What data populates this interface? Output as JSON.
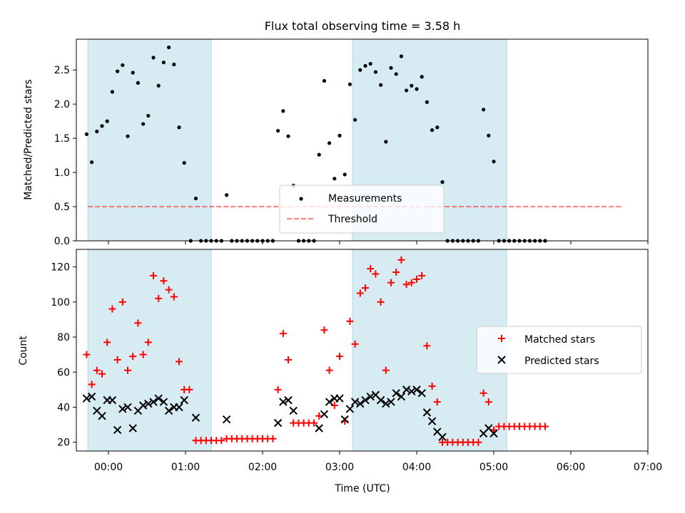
{
  "chart_data": [
    {
      "type": "scatter",
      "title": "Flux total observing time = 3.58 h",
      "ylabel": "Matched/Predicted stars",
      "xlabel": "",
      "xlim": [
        "23:35",
        "07:00"
      ],
      "ylim": [
        0,
        2.95
      ],
      "yticks": [
        "0.0",
        "0.5",
        "1.0",
        "1.5",
        "2.0",
        "2.5"
      ],
      "shaded_intervals": [
        [
          "23:44",
          "01:20"
        ],
        [
          "03:10",
          "05:10"
        ]
      ],
      "legend": {
        "position": "lower-center",
        "entries": [
          "Measurements",
          "Threshold"
        ]
      },
      "threshold": {
        "name": "Threshold",
        "value": 0.5,
        "x_range": [
          "23:44",
          "06:40"
        ]
      },
      "series": [
        {
          "name": "Measurements",
          "points": [
            [
              "23:43",
              1.56
            ],
            [
              "23:47",
              1.15
            ],
            [
              "23:51",
              1.6
            ],
            [
              "23:55",
              1.68
            ],
            [
              "23:59",
              1.75
            ],
            [
              "00:03",
              2.18
            ],
            [
              "00:07",
              2.48
            ],
            [
              "00:11",
              2.57
            ],
            [
              "00:15",
              1.53
            ],
            [
              "00:19",
              2.46
            ],
            [
              "00:23",
              2.31
            ],
            [
              "00:27",
              1.71
            ],
            [
              "00:31",
              1.83
            ],
            [
              "00:35",
              2.68
            ],
            [
              "00:39",
              2.27
            ],
            [
              "00:43",
              2.61
            ],
            [
              "00:47",
              2.83
            ],
            [
              "00:51",
              2.58
            ],
            [
              "00:55",
              1.66
            ],
            [
              "00:59",
              1.14
            ],
            [
              "01:04",
              0.0
            ],
            [
              "01:08",
              0.62
            ],
            [
              "01:12",
              0.0
            ],
            [
              "01:16",
              0.0
            ],
            [
              "01:20",
              0.0
            ],
            [
              "01:24",
              0.0
            ],
            [
              "01:28",
              0.0
            ],
            [
              "01:32",
              0.67
            ],
            [
              "01:36",
              0.0
            ],
            [
              "01:40",
              0.0
            ],
            [
              "01:44",
              0.0
            ],
            [
              "01:48",
              0.0
            ],
            [
              "01:52",
              0.0
            ],
            [
              "01:56",
              0.0
            ],
            [
              "02:00",
              0.0
            ],
            [
              "02:04",
              0.0
            ],
            [
              "02:08",
              0.0
            ],
            [
              "02:12",
              1.61
            ],
            [
              "02:16",
              1.9
            ],
            [
              "02:20",
              1.53
            ],
            [
              "02:24",
              0.81
            ],
            [
              "02:28",
              0.0
            ],
            [
              "02:32",
              0.0
            ],
            [
              "02:36",
              0.0
            ],
            [
              "02:40",
              0.0
            ],
            [
              "02:44",
              1.26
            ],
            [
              "02:48",
              2.34
            ],
            [
              "02:52",
              1.43
            ],
            [
              "02:56",
              0.91
            ],
            [
              "03:00",
              1.54
            ],
            [
              "03:04",
              0.97
            ],
            [
              "03:08",
              2.29
            ],
            [
              "03:12",
              1.77
            ],
            [
              "03:16",
              2.5
            ],
            [
              "03:20",
              2.56
            ],
            [
              "03:24",
              2.59
            ],
            [
              "03:28",
              2.47
            ],
            [
              "03:32",
              2.28
            ],
            [
              "03:36",
              1.45
            ],
            [
              "03:40",
              2.53
            ],
            [
              "03:44",
              2.44
            ],
            [
              "03:48",
              2.7
            ],
            [
              "03:52",
              2.2
            ],
            [
              "03:56",
              2.27
            ],
            [
              "04:00",
              2.22
            ],
            [
              "04:04",
              2.4
            ],
            [
              "04:08",
              2.03
            ],
            [
              "04:12",
              1.62
            ],
            [
              "04:16",
              1.66
            ],
            [
              "04:20",
              0.86
            ],
            [
              "04:24",
              0.0
            ],
            [
              "04:28",
              0.0
            ],
            [
              "04:32",
              0.0
            ],
            [
              "04:36",
              0.0
            ],
            [
              "04:40",
              0.0
            ],
            [
              "04:44",
              0.0
            ],
            [
              "04:48",
              0.0
            ],
            [
              "04:52",
              1.92
            ],
            [
              "04:56",
              1.54
            ],
            [
              "05:00",
              1.16
            ],
            [
              "05:04",
              0.0
            ],
            [
              "05:08",
              0.0
            ],
            [
              "05:12",
              0.0
            ],
            [
              "05:16",
              0.0
            ],
            [
              "05:20",
              0.0
            ],
            [
              "05:24",
              0.0
            ],
            [
              "05:28",
              0.0
            ],
            [
              "05:32",
              0.0
            ],
            [
              "05:36",
              0.0
            ],
            [
              "05:40",
              0.0
            ]
          ]
        }
      ]
    },
    {
      "type": "scatter",
      "title": "",
      "ylabel": "Count",
      "xlabel": "Time (UTC)",
      "xlim": [
        "23:35",
        "07:00"
      ],
      "ylim": [
        15,
        130
      ],
      "yticks": [
        "20",
        "40",
        "60",
        "80",
        "100",
        "120"
      ],
      "xticks": [
        "00:00",
        "01:00",
        "02:00",
        "03:00",
        "04:00",
        "05:00",
        "06:00",
        "07:00"
      ],
      "shaded_intervals": [
        [
          "23:44",
          "01:20"
        ],
        [
          "03:10",
          "05:10"
        ]
      ],
      "legend": {
        "position": "center-right",
        "entries": [
          "Matched stars",
          "Predicted stars"
        ]
      },
      "series": [
        {
          "name": "Matched stars",
          "color": "#ff0000",
          "points": [
            [
              "23:43",
              70
            ],
            [
              "23:47",
              53
            ],
            [
              "23:51",
              61
            ],
            [
              "23:55",
              59
            ],
            [
              "23:59",
              77
            ],
            [
              "00:03",
              96
            ],
            [
              "00:07",
              67
            ],
            [
              "00:11",
              100
            ],
            [
              "00:15",
              61
            ],
            [
              "00:19",
              69
            ],
            [
              "00:23",
              88
            ],
            [
              "00:27",
              70
            ],
            [
              "00:31",
              77
            ],
            [
              "00:35",
              115
            ],
            [
              "00:39",
              102
            ],
            [
              "00:43",
              112
            ],
            [
              "00:47",
              107
            ],
            [
              "00:51",
              103
            ],
            [
              "00:55",
              66
            ],
            [
              "00:59",
              50
            ],
            [
              "01:03",
              50
            ],
            [
              "01:08",
              21
            ],
            [
              "01:12",
              21
            ],
            [
              "01:16",
              21
            ],
            [
              "01:20",
              21
            ],
            [
              "01:24",
              21
            ],
            [
              "01:28",
              21
            ],
            [
              "01:32",
              22
            ],
            [
              "01:36",
              22
            ],
            [
              "01:40",
              22
            ],
            [
              "01:44",
              22
            ],
            [
              "01:48",
              22
            ],
            [
              "01:52",
              22
            ],
            [
              "01:56",
              22
            ],
            [
              "02:00",
              22
            ],
            [
              "02:04",
              22
            ],
            [
              "02:08",
              22
            ],
            [
              "02:12",
              50
            ],
            [
              "02:16",
              82
            ],
            [
              "02:20",
              67
            ],
            [
              "02:24",
              31
            ],
            [
              "02:28",
              31
            ],
            [
              "02:32",
              31
            ],
            [
              "02:36",
              31
            ],
            [
              "02:40",
              31
            ],
            [
              "02:44",
              35
            ],
            [
              "02:48",
              84
            ],
            [
              "02:52",
              61
            ],
            [
              "02:56",
              41
            ],
            [
              "03:00",
              69
            ],
            [
              "03:04",
              32
            ],
            [
              "03:08",
              89
            ],
            [
              "03:12",
              76
            ],
            [
              "03:16",
              105
            ],
            [
              "03:20",
              108
            ],
            [
              "03:24",
              119
            ],
            [
              "03:28",
              116
            ],
            [
              "03:32",
              100
            ],
            [
              "03:36",
              61
            ],
            [
              "03:40",
              111
            ],
            [
              "03:44",
              117
            ],
            [
              "03:48",
              124
            ],
            [
              "03:52",
              110
            ],
            [
              "03:56",
              111
            ],
            [
              "04:00",
              113
            ],
            [
              "04:04",
              115
            ],
            [
              "04:08",
              75
            ],
            [
              "04:12",
              52
            ],
            [
              "04:16",
              43
            ],
            [
              "04:20",
              20
            ],
            [
              "04:24",
              20
            ],
            [
              "04:28",
              20
            ],
            [
              "04:32",
              20
            ],
            [
              "04:36",
              20
            ],
            [
              "04:40",
              20
            ],
            [
              "04:44",
              20
            ],
            [
              "04:48",
              20
            ],
            [
              "04:52",
              48
            ],
            [
              "04:56",
              43
            ],
            [
              "05:00",
              27
            ],
            [
              "05:04",
              29
            ],
            [
              "05:08",
              29
            ],
            [
              "05:12",
              29
            ],
            [
              "05:16",
              29
            ],
            [
              "05:20",
              29
            ],
            [
              "05:24",
              29
            ],
            [
              "05:28",
              29
            ],
            [
              "05:32",
              29
            ],
            [
              "05:36",
              29
            ],
            [
              "05:40",
              29
            ]
          ]
        },
        {
          "name": "Predicted stars",
          "color": "#000000",
          "points": [
            [
              "23:43",
              45
            ],
            [
              "23:47",
              46
            ],
            [
              "23:51",
              38
            ],
            [
              "23:55",
              35
            ],
            [
              "23:59",
              44
            ],
            [
              "00:03",
              44
            ],
            [
              "00:07",
              27
            ],
            [
              "00:11",
              39
            ],
            [
              "00:15",
              40
            ],
            [
              "00:19",
              28
            ],
            [
              "00:23",
              38
            ],
            [
              "00:27",
              41
            ],
            [
              "00:31",
              42
            ],
            [
              "00:35",
              43
            ],
            [
              "00:39",
              45
            ],
            [
              "00:43",
              43
            ],
            [
              "00:47",
              38
            ],
            [
              "00:51",
              40
            ],
            [
              "00:55",
              40
            ],
            [
              "00:59",
              44
            ],
            [
              "01:08",
              34
            ],
            [
              "01:32",
              33
            ],
            [
              "02:12",
              31
            ],
            [
              "02:16",
              43
            ],
            [
              "02:20",
              44
            ],
            [
              "02:24",
              38
            ],
            [
              "02:44",
              28
            ],
            [
              "02:48",
              36
            ],
            [
              "02:52",
              43
            ],
            [
              "02:56",
              45
            ],
            [
              "03:00",
              45
            ],
            [
              "03:04",
              33
            ],
            [
              "03:08",
              39
            ],
            [
              "03:12",
              43
            ],
            [
              "03:16",
              42
            ],
            [
              "03:20",
              44
            ],
            [
              "03:24",
              46
            ],
            [
              "03:28",
              47
            ],
            [
              "03:32",
              44
            ],
            [
              "03:36",
              42
            ],
            [
              "03:40",
              43
            ],
            [
              "03:44",
              48
            ],
            [
              "03:48",
              46
            ],
            [
              "03:52",
              50
            ],
            [
              "03:56",
              49
            ],
            [
              "04:00",
              50
            ],
            [
              "04:04",
              48
            ],
            [
              "04:08",
              37
            ],
            [
              "04:12",
              32
            ],
            [
              "04:16",
              26
            ],
            [
              "04:20",
              23
            ],
            [
              "04:52",
              25
            ],
            [
              "04:56",
              28
            ],
            [
              "05:00",
              25
            ]
          ]
        }
      ]
    }
  ],
  "colors": {
    "shade": "#add8e6",
    "threshold": "#ff0000",
    "matched": "#ff0000",
    "predicted": "#000000",
    "measurement": "#000000"
  }
}
